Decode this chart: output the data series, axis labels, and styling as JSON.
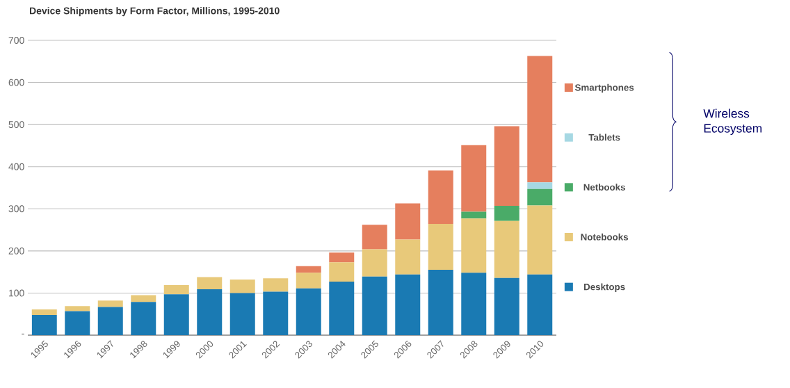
{
  "chart_data": {
    "type": "bar",
    "stacked": true,
    "title": "Device Shipments by Form Factor, Millions, 1995-2010",
    "categories": [
      "1995",
      "1996",
      "1997",
      "1998",
      "1999",
      "2000",
      "2001",
      "2002",
      "2003",
      "2004",
      "2005",
      "2006",
      "2007",
      "2008",
      "2009",
      "2010"
    ],
    "series": [
      {
        "name": "Desktops",
        "color": "#1a7ab3",
        "values": [
          48,
          57,
          67,
          79,
          97,
          109,
          100,
          103,
          111,
          127,
          139,
          144,
          155,
          148,
          136,
          144
        ]
      },
      {
        "name": "Notebooks",
        "color": "#e8c97a",
        "values": [
          13,
          12,
          15,
          16,
          22,
          29,
          32,
          32,
          37,
          46,
          65,
          83,
          109,
          129,
          135,
          164
        ]
      },
      {
        "name": "Netbooks",
        "color": "#4aab68",
        "values": [
          0,
          0,
          0,
          0,
          0,
          0,
          0,
          0,
          0,
          0,
          0,
          0,
          0,
          16,
          36,
          39
        ]
      },
      {
        "name": "Tablets",
        "color": "#a6d8e3",
        "values": [
          0,
          0,
          0,
          0,
          0,
          0,
          0,
          0,
          0,
          0,
          0,
          0,
          0,
          0,
          0,
          16
        ]
      },
      {
        "name": "Smartphones",
        "color": "#e57f5e",
        "values": [
          0,
          0,
          0,
          0,
          0,
          0,
          0,
          0,
          16,
          23,
          58,
          86,
          127,
          158,
          189,
          300
        ]
      }
    ],
    "ylim": [
      0,
      700
    ],
    "yticks": [
      {
        "value": 0,
        "label": "-"
      },
      100,
      200,
      300,
      400,
      500,
      600,
      700
    ],
    "grid": "y",
    "legend": "right",
    "annotations": [
      "Wireless Ecosystem"
    ]
  }
}
